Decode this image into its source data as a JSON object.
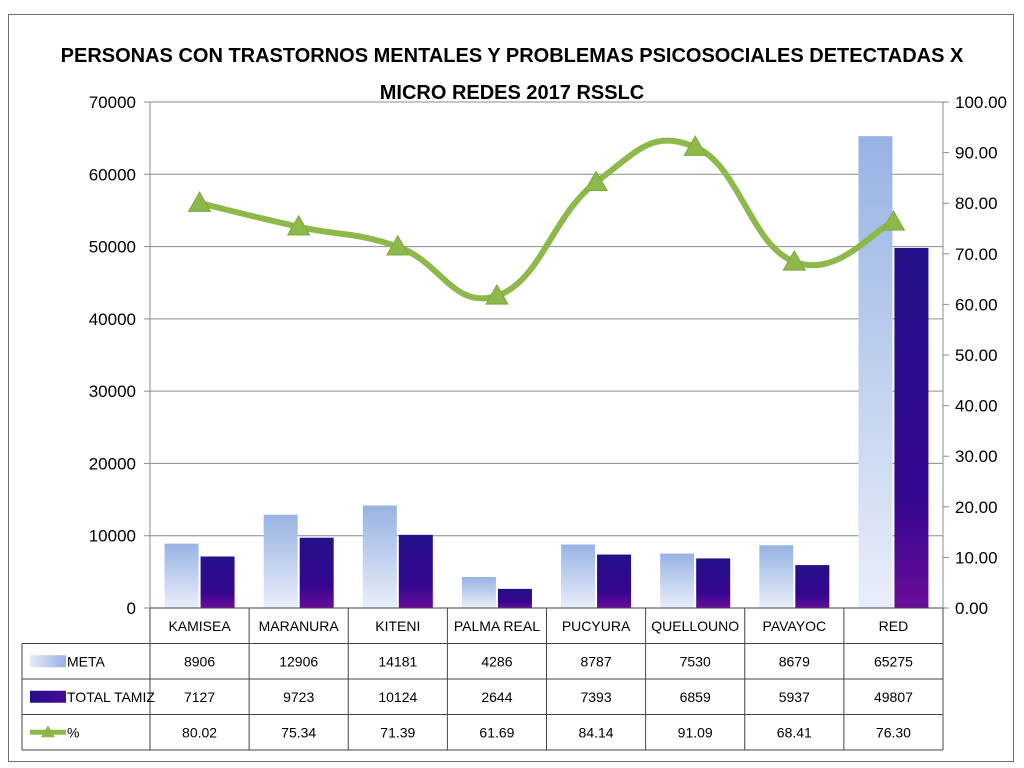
{
  "chart_data": {
    "type": "bar",
    "title_line1": "PERSONAS  CON TRASTORNOS MENTALES Y PROBLEMAS PSICOSOCIALES  DETECTADAS  X",
    "title_line2": "MICRO REDES 2017 RSSLC",
    "categories": [
      "KAMISEA",
      "MARANURA",
      "KITENI",
      "PALMA REAL",
      "PUCYURA",
      "QUELLOUNO",
      "PAVAYOC",
      "RED"
    ],
    "series": [
      {
        "name": "META",
        "kind": "bar",
        "axis": "left",
        "color": "#9DB8E4",
        "values": [
          8906,
          12906,
          14181,
          4286,
          8787,
          7530,
          8679,
          65275
        ],
        "labels": [
          "8906",
          "12906",
          "14181",
          "4286",
          "8787",
          "7530",
          "8679",
          "65275"
        ]
      },
      {
        "name": "TOTAL TAMIZ",
        "kind": "bar",
        "axis": "right_bars",
        "color": "#2E0A8C",
        "values": [
          7127,
          9723,
          10124,
          2644,
          7393,
          6859,
          5937,
          49807
        ],
        "labels": [
          "7127",
          "9723",
          "10124",
          "2644",
          "7393",
          "6859",
          "5937",
          "49807"
        ]
      },
      {
        "name": "%",
        "kind": "line",
        "axis": "right",
        "color": "#8DB84A",
        "values": [
          80.02,
          75.34,
          71.39,
          61.69,
          84.14,
          91.09,
          68.41,
          76.3
        ],
        "labels": [
          "80.02",
          "75.34",
          "71.39",
          "61.69",
          "84.14",
          "91.09",
          "68.41",
          "76.30"
        ]
      }
    ],
    "y_left": {
      "min": 0,
      "max": 70000,
      "ticks": [
        "0",
        "10000",
        "20000",
        "30000",
        "40000",
        "50000",
        "60000",
        "70000"
      ]
    },
    "y_right": {
      "min": 0,
      "max": 100,
      "ticks": [
        "0.00",
        "10.00",
        "20.00",
        "30.00",
        "40.00",
        "50.00",
        "60.00",
        "70.00",
        "80.00",
        "90.00",
        "100.00"
      ]
    },
    "grid": true,
    "legend": "data-table"
  }
}
